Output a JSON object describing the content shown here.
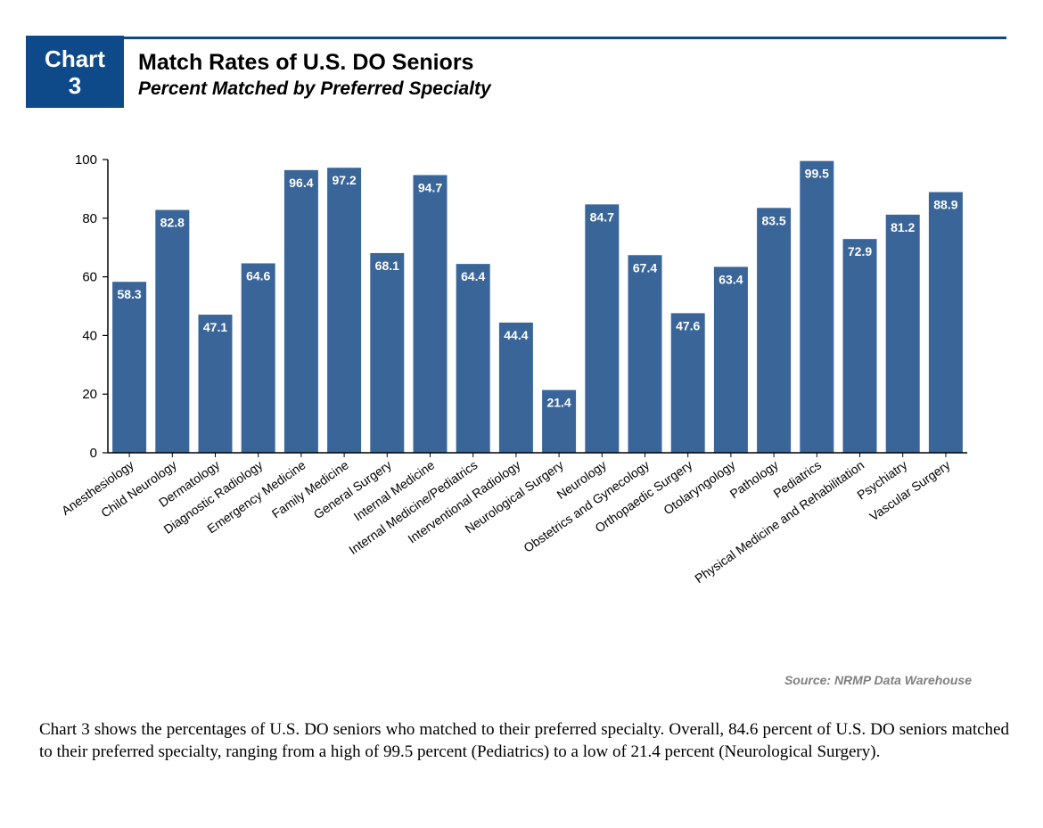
{
  "header": {
    "badge_line1": "Chart",
    "badge_line2": "3",
    "title": "Match Rates of U.S. DO Seniors",
    "subtitle": "Percent Matched by Preferred Specialty",
    "accent_color": "#0e4a8a"
  },
  "chart_data": {
    "type": "bar",
    "title": "Match Rates of U.S. DO Seniors",
    "subtitle": "Percent Matched by Preferred Specialty",
    "xlabel": "",
    "ylabel": "",
    "ylim": [
      0,
      100
    ],
    "yticks": [
      0,
      20,
      40,
      60,
      80,
      100
    ],
    "grid": false,
    "bar_color": "#3a6599",
    "categories": [
      "Anesthesiology",
      "Child Neurology",
      "Dermatology",
      "Diagnostic Radiology",
      "Emergency Medicine",
      "Family Medicine",
      "General Surgery",
      "Internal Medicine",
      "Internal Medicine/Pediatrics",
      "Interventional Radiology",
      "Neurological Surgery",
      "Neurology",
      "Obstetrics and Gynecology",
      "Orthopaedic Surgery",
      "Otolaryngology",
      "Pathology",
      "Pediatrics",
      "Physical Medicine and Rehabilitation",
      "Psychiatry",
      "Vascular Surgery"
    ],
    "values": [
      58.3,
      82.8,
      47.1,
      64.6,
      96.4,
      97.2,
      68.1,
      94.7,
      64.4,
      44.4,
      21.4,
      84.7,
      67.4,
      47.6,
      63.4,
      83.5,
      99.5,
      72.9,
      81.2,
      88.9
    ],
    "data_labels": [
      "58.3",
      "82.8",
      "47.1",
      "64.6",
      "96.4",
      "97.2",
      "68.1",
      "94.7",
      "64.4",
      "44.4",
      "21.4",
      "84.7",
      "67.4",
      "47.6",
      "63.4",
      "83.5",
      "99.5",
      "72.9",
      "81.2",
      "88.9"
    ]
  },
  "source": "Source: NRMP Data Warehouse",
  "caption": "Chart 3 shows the percentages of U.S. DO seniors who matched to their preferred specialty. Overall, 84.6 percent of U.S. DO seniors matched to their preferred specialty, ranging from a high of 99.5 percent (Pediatrics) to a low of 21.4 percent (Neurological Surgery)."
}
